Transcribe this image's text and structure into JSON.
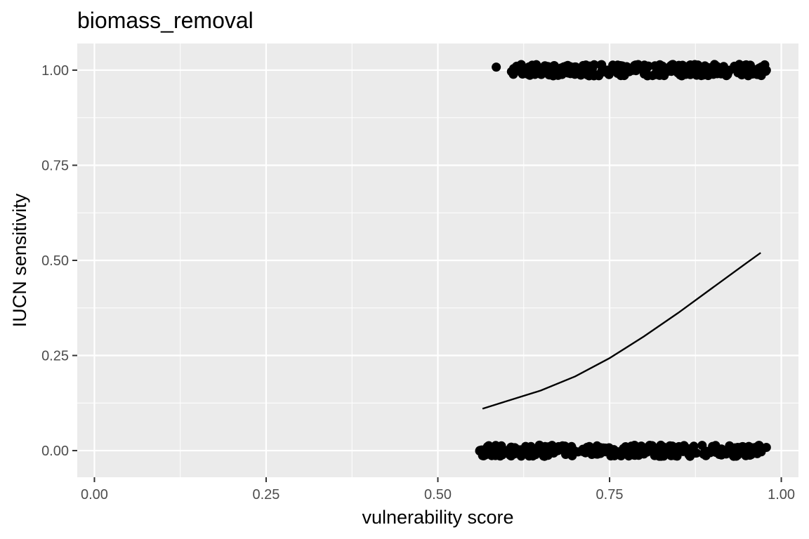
{
  "chart_data": {
    "type": "scatter",
    "title": "biomass_removal",
    "xlabel": "vulnerability score",
    "ylabel": "IUCN sensitivity",
    "xlim": [
      -0.025,
      1.025
    ],
    "ylim": [
      -0.07,
      1.07
    ],
    "grid": true,
    "legend": "none",
    "x_ticks": [
      0.0,
      0.25,
      0.5,
      0.75,
      1.0
    ],
    "x_tick_labels": [
      "0.00",
      "0.25",
      "0.50",
      "0.75",
      "1.00"
    ],
    "y_ticks": [
      0.0,
      0.25,
      0.5,
      0.75,
      1.0
    ],
    "y_tick_labels": [
      "0.00",
      "0.25",
      "0.50",
      "0.75",
      "1.00"
    ],
    "series": [
      {
        "kind": "points",
        "bands": [
          {
            "y": 1.0,
            "x_min": 0.605,
            "x_max": 0.98,
            "jitter": 0.015
          },
          {
            "y": 0.0,
            "x_min": 0.56,
            "x_max": 0.98,
            "jitter": 0.015
          }
        ],
        "outliers": [
          {
            "x": 0.585,
            "y": 1.008
          }
        ]
      },
      {
        "kind": "line",
        "x": [
          0.565,
          0.6,
          0.65,
          0.7,
          0.75,
          0.8,
          0.85,
          0.9,
          0.95,
          0.97
        ],
        "y": [
          0.11,
          0.13,
          0.158,
          0.195,
          0.243,
          0.3,
          0.362,
          0.428,
          0.494,
          0.52
        ]
      }
    ],
    "colors": {
      "panel": "#ebebeb",
      "grid": "#ffffff",
      "points": "#000000",
      "line": "#000000",
      "tick_label": "#4d4d4d",
      "tick_mark": "#333333"
    }
  }
}
